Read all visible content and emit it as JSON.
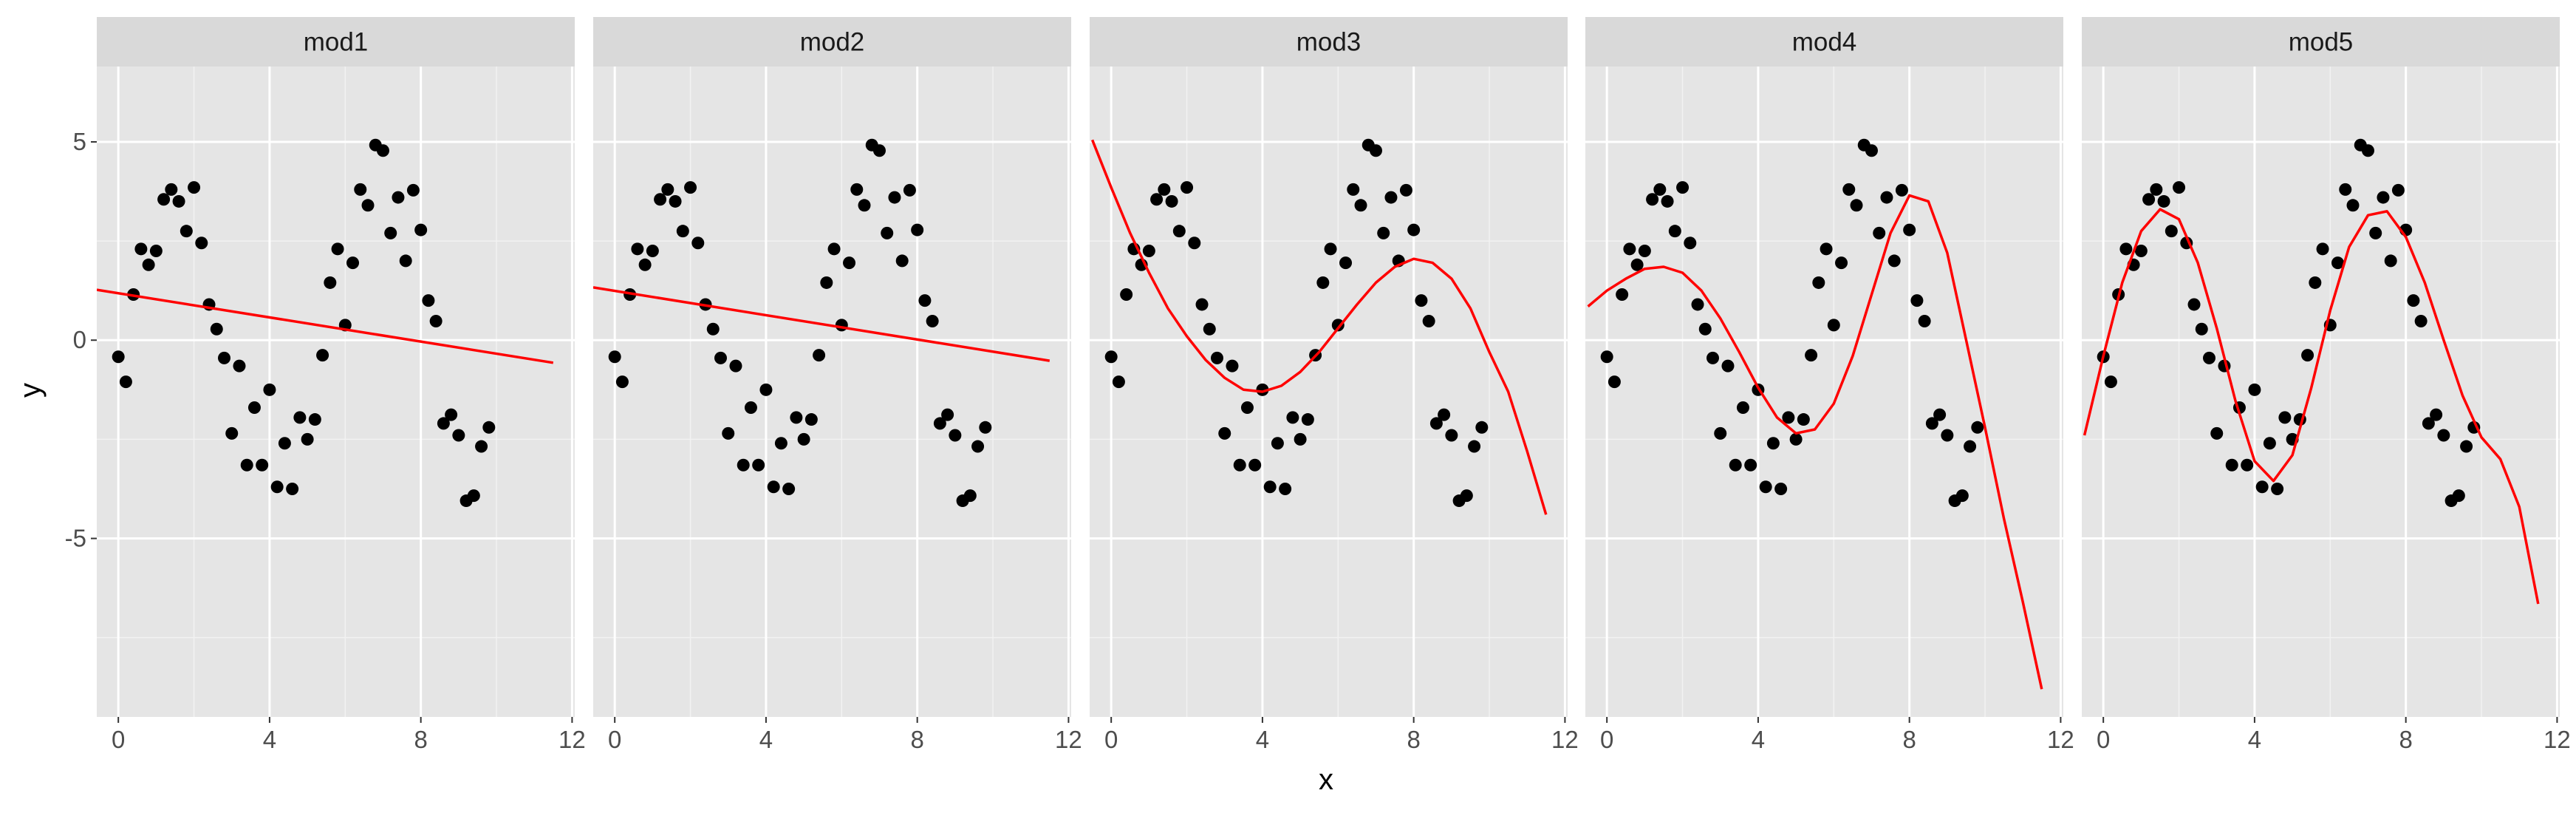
{
  "chart_data": {
    "type": "scatter",
    "layout": "facets-1x5",
    "xlabel": "x",
    "ylabel": "y",
    "xlim": [
      -0.57,
      12.07
    ],
    "ylim": [
      -9.5,
      6.9
    ],
    "x_ticks": [
      0,
      4,
      8,
      12
    ],
    "y_ticks": [
      5,
      0,
      -5
    ],
    "grid": true,
    "background": "#e5e5e5",
    "strip_color": "#d9d9d9",
    "point_color": "#000000",
    "line_color": "#ff0000",
    "points": [
      {
        "x": 0.0,
        "y": -0.42
      },
      {
        "x": 0.2,
        "y": -1.05
      },
      {
        "x": 0.4,
        "y": 1.15
      },
      {
        "x": 0.6,
        "y": 2.3
      },
      {
        "x": 0.8,
        "y": 1.9
      },
      {
        "x": 1.0,
        "y": 2.25
      },
      {
        "x": 1.2,
        "y": 3.55
      },
      {
        "x": 1.4,
        "y": 3.8
      },
      {
        "x": 1.6,
        "y": 3.5
      },
      {
        "x": 1.8,
        "y": 2.75
      },
      {
        "x": 2.0,
        "y": 3.85
      },
      {
        "x": 2.2,
        "y": 2.45
      },
      {
        "x": 2.4,
        "y": 0.9
      },
      {
        "x": 2.6,
        "y": 0.28
      },
      {
        "x": 2.8,
        "y": -0.45
      },
      {
        "x": 3.0,
        "y": -2.35
      },
      {
        "x": 3.2,
        "y": -0.65
      },
      {
        "x": 3.4,
        "y": -3.15
      },
      {
        "x": 3.6,
        "y": -1.7
      },
      {
        "x": 3.8,
        "y": -3.15
      },
      {
        "x": 4.0,
        "y": -1.25
      },
      {
        "x": 4.2,
        "y": -3.7
      },
      {
        "x": 4.4,
        "y": -2.6
      },
      {
        "x": 4.6,
        "y": -3.75
      },
      {
        "x": 4.8,
        "y": -1.95
      },
      {
        "x": 5.0,
        "y": -2.5
      },
      {
        "x": 5.2,
        "y": -2.0
      },
      {
        "x": 5.4,
        "y": -0.38
      },
      {
        "x": 5.6,
        "y": 1.45
      },
      {
        "x": 5.8,
        "y": 2.3
      },
      {
        "x": 6.0,
        "y": 0.38
      },
      {
        "x": 6.2,
        "y": 1.95
      },
      {
        "x": 6.4,
        "y": 3.8
      },
      {
        "x": 6.6,
        "y": 3.4
      },
      {
        "x": 6.8,
        "y": 4.92
      },
      {
        "x": 7.0,
        "y": 4.78
      },
      {
        "x": 7.2,
        "y": 2.7
      },
      {
        "x": 7.4,
        "y": 3.6
      },
      {
        "x": 7.6,
        "y": 2.0
      },
      {
        "x": 7.8,
        "y": 3.78
      },
      {
        "x": 8.0,
        "y": 2.78
      },
      {
        "x": 8.2,
        "y": 1.0
      },
      {
        "x": 8.4,
        "y": 0.48
      },
      {
        "x": 8.6,
        "y": -2.1
      },
      {
        "x": 8.8,
        "y": -1.88
      },
      {
        "x": 9.0,
        "y": -2.4
      },
      {
        "x": 9.2,
        "y": -4.05
      },
      {
        "x": 9.4,
        "y": -3.92
      },
      {
        "x": 9.6,
        "y": -2.68
      },
      {
        "x": 9.8,
        "y": -2.2
      }
    ],
    "series": [
      {
        "name": "mod1",
        "x": [
          -0.57,
          11.5
        ],
        "y": [
          1.27,
          -0.57
        ]
      },
      {
        "name": "mod2",
        "x": [
          -0.57,
          11.5
        ],
        "y": [
          1.33,
          -0.52
        ]
      },
      {
        "name": "mod3",
        "x": [
          -0.5,
          0.0,
          0.5,
          1.0,
          1.5,
          2.0,
          2.5,
          3.0,
          3.5,
          4.0,
          4.5,
          5.0,
          5.5,
          6.0,
          6.5,
          7.0,
          7.5,
          8.0,
          8.5,
          9.0,
          9.5,
          10.0,
          10.5,
          11.0,
          11.5
        ],
        "y": [
          5.05,
          3.85,
          2.7,
          1.7,
          0.8,
          0.1,
          -0.5,
          -0.95,
          -1.25,
          -1.3,
          -1.15,
          -0.8,
          -0.3,
          0.3,
          0.9,
          1.45,
          1.85,
          2.05,
          1.95,
          1.55,
          0.8,
          -0.3,
          -1.3,
          -2.8,
          -4.4
        ]
      },
      {
        "name": "mod4",
        "x": [
          -0.5,
          0.0,
          0.5,
          1.0,
          1.5,
          2.0,
          2.5,
          3.0,
          3.5,
          4.0,
          4.5,
          5.0,
          5.5,
          6.0,
          6.5,
          7.0,
          7.5,
          8.0,
          8.5,
          9.0,
          9.5,
          10.0,
          10.5,
          11.0,
          11.5
        ],
        "y": [
          0.85,
          1.25,
          1.55,
          1.8,
          1.85,
          1.7,
          1.25,
          0.55,
          -0.3,
          -1.2,
          -1.95,
          -2.35,
          -2.25,
          -1.6,
          -0.4,
          1.15,
          2.7,
          3.65,
          3.5,
          2.2,
          0.0,
          -2.2,
          -4.5,
          -6.6,
          -8.8
        ]
      },
      {
        "name": "mod5",
        "x": [
          -0.5,
          0.0,
          0.5,
          1.0,
          1.5,
          2.0,
          2.5,
          3.0,
          3.5,
          4.0,
          4.5,
          5.0,
          5.5,
          6.0,
          6.5,
          7.0,
          7.5,
          8.0,
          8.5,
          9.0,
          9.5,
          10.0,
          10.5,
          11.0,
          11.5
        ],
        "y": [
          -2.4,
          -0.4,
          1.45,
          2.75,
          3.3,
          3.05,
          1.95,
          0.3,
          -1.55,
          -3.05,
          -3.55,
          -2.9,
          -1.2,
          0.75,
          2.35,
          3.15,
          3.25,
          2.6,
          1.45,
          0.0,
          -1.4,
          -2.45,
          -3.0,
          -4.2,
          -6.65
        ]
      }
    ]
  }
}
